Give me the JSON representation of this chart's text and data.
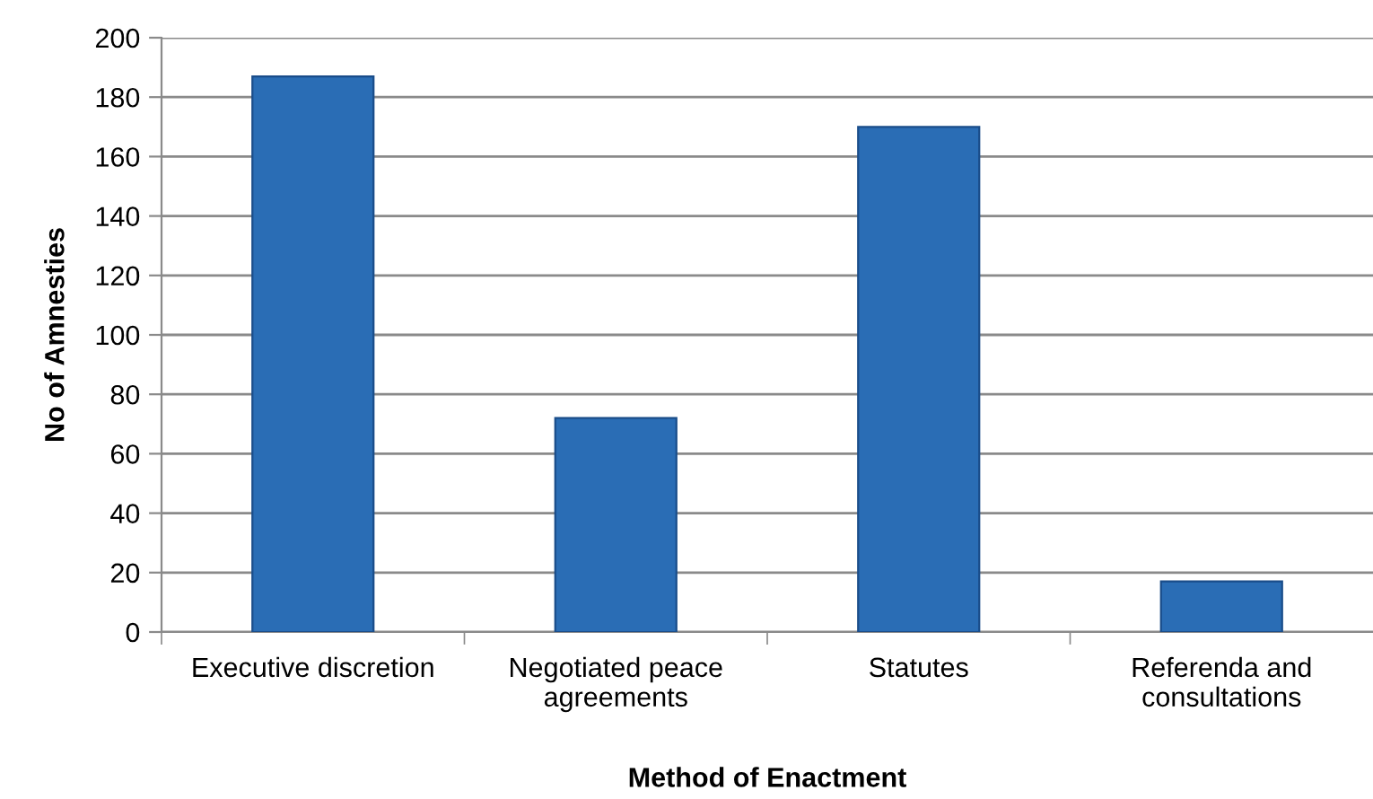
{
  "chart_data": {
    "type": "bar",
    "xlabel": "Method of Enactment",
    "ylabel": "No of Amnesties",
    "categories": [
      "Executive discretion",
      "Negotiated peace\nagreements",
      "Statutes",
      "Referenda and\nconsultations"
    ],
    "values": [
      187,
      72,
      170,
      17
    ],
    "color": "#2a6db5",
    "ylim": [
      0,
      200
    ],
    "yticks": [
      0,
      20,
      40,
      60,
      80,
      100,
      120,
      140,
      160,
      180,
      200
    ],
    "grid": "y",
    "legend": false
  }
}
